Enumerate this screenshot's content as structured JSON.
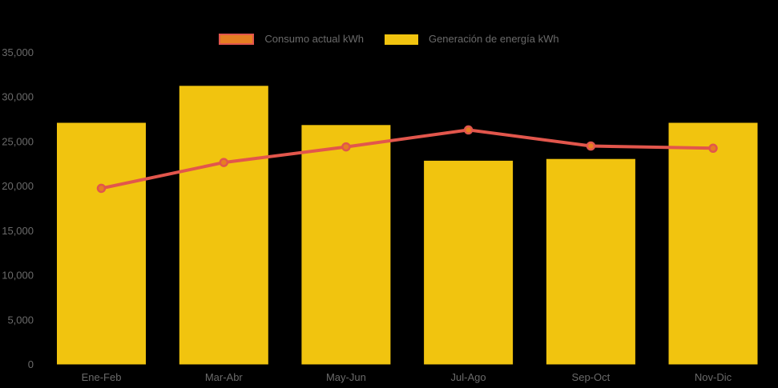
{
  "colors": {
    "background": "#000000",
    "text": "#6a6a6a",
    "bar_yellow": "#F1C40F",
    "line_red": "#E2564C",
    "marker_orange": "#E67E22"
  },
  "legend": {
    "items": [
      {
        "label": "Consumo actual kWh",
        "swatch": "orange-fill-red-border"
      },
      {
        "label": "Generación de energía kWh",
        "swatch": "yellow-fill"
      }
    ]
  },
  "chart_data": {
    "type": "combo",
    "categories": [
      "Ene-Feb",
      "Mar-Abr",
      "May-Jun",
      "Jul-Ago",
      "Sep-Oct",
      "Nov-Dic"
    ],
    "series": [
      {
        "name": "Consumo actual kWh",
        "type": "line",
        "color": "#E2564C",
        "marker_color": "#E67E22",
        "values": [
          19750,
          22650,
          24400,
          26300,
          24500,
          24250
        ]
      },
      {
        "name": "Generación de energía kWh",
        "type": "bar",
        "color": "#F1C40F",
        "values": [
          27100,
          31250,
          26850,
          22850,
          23050,
          27100
        ]
      }
    ],
    "title": "",
    "xlabel": "",
    "ylabel": "",
    "ylim": [
      0,
      35000
    ],
    "ytick_step": 5000,
    "yticklabels": [
      "0",
      "5,000",
      "10,000",
      "15,000",
      "20,000",
      "25,000",
      "30,000",
      "35,000"
    ],
    "grid": false,
    "legend_position": "top-center",
    "background": "black"
  }
}
